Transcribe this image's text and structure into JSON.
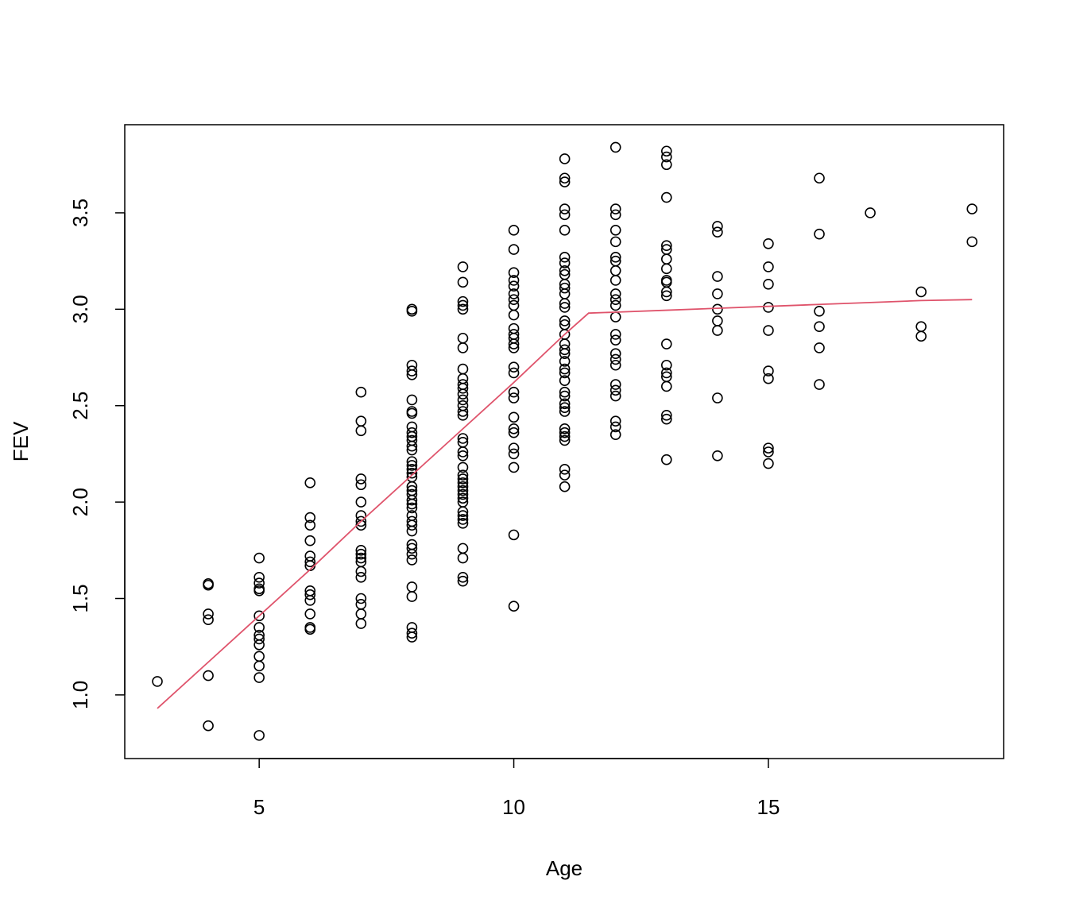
{
  "chart_data": {
    "type": "scatter",
    "xlabel": "Age",
    "ylabel": "FEV",
    "xlim": [
      2.36,
      19.62
    ],
    "ylim": [
      0.67,
      3.957
    ],
    "xticks": [
      5,
      10,
      15
    ],
    "yticks": [
      {
        "value": 1,
        "label": "1.0"
      },
      {
        "value": 1.5,
        "label": "1.5"
      },
      {
        "value": 2,
        "label": "2.0"
      },
      {
        "value": 2.5,
        "label": "2.5"
      },
      {
        "value": 3,
        "label": "3.0"
      },
      {
        "value": 3.5,
        "label": "3.5"
      }
    ],
    "series": [
      {
        "type": "scatter",
        "color": "#000000",
        "points": [
          [
            3,
            1.07
          ],
          [
            4,
            1.577
          ],
          [
            4,
            1.569
          ],
          [
            4,
            1.42
          ],
          [
            4,
            1.39
          ],
          [
            4,
            1.1
          ],
          [
            4,
            0.84
          ],
          [
            5,
            1.71
          ],
          [
            5,
            1.61
          ],
          [
            5,
            1.58
          ],
          [
            5,
            1.55
          ],
          [
            5,
            1.54
          ],
          [
            5,
            1.41
          ],
          [
            5,
            1.35
          ],
          [
            5,
            1.31
          ],
          [
            5,
            1.29
          ],
          [
            5,
            1.26
          ],
          [
            5,
            1.2
          ],
          [
            5,
            1.15
          ],
          [
            5,
            1.09
          ],
          [
            5,
            0.79
          ],
          [
            6,
            2.1
          ],
          [
            6,
            1.92
          ],
          [
            6,
            1.88
          ],
          [
            6,
            1.8
          ],
          [
            6,
            1.72
          ],
          [
            6,
            1.69
          ],
          [
            6,
            1.67
          ],
          [
            6,
            1.54
          ],
          [
            6,
            1.52
          ],
          [
            6,
            1.49
          ],
          [
            6,
            1.42
          ],
          [
            6,
            1.35
          ],
          [
            6,
            1.34
          ],
          [
            7,
            2.57
          ],
          [
            7,
            2.42
          ],
          [
            7,
            2.37
          ],
          [
            7,
            2.12
          ],
          [
            7,
            2.09
          ],
          [
            7,
            2.0
          ],
          [
            7,
            1.93
          ],
          [
            7,
            1.9
          ],
          [
            7,
            1.88
          ],
          [
            7,
            1.75
          ],
          [
            7,
            1.73
          ],
          [
            7,
            1.71
          ],
          [
            7,
            1.69
          ],
          [
            7,
            1.64
          ],
          [
            7,
            1.61
          ],
          [
            7,
            1.5
          ],
          [
            7,
            1.47
          ],
          [
            7,
            1.42
          ],
          [
            7,
            1.37
          ],
          [
            8,
            3.0
          ],
          [
            8,
            2.99
          ],
          [
            8,
            2.71
          ],
          [
            8,
            2.68
          ],
          [
            8,
            2.66
          ],
          [
            8,
            2.53
          ],
          [
            8,
            2.47
          ],
          [
            8,
            2.46
          ],
          [
            8,
            2.39
          ],
          [
            8,
            2.36
          ],
          [
            8,
            2.34
          ],
          [
            8,
            2.32
          ],
          [
            8,
            2.29
          ],
          [
            8,
            2.27
          ],
          [
            8,
            2.21
          ],
          [
            8,
            2.19
          ],
          [
            8,
            2.17
          ],
          [
            8,
            2.15
          ],
          [
            8,
            2.13
          ],
          [
            8,
            2.08
          ],
          [
            8,
            2.06
          ],
          [
            8,
            2.04
          ],
          [
            8,
            2.01
          ],
          [
            8,
            1.99
          ],
          [
            8,
            1.97
          ],
          [
            8,
            1.93
          ],
          [
            8,
            1.9
          ],
          [
            8,
            1.88
          ],
          [
            8,
            1.85
          ],
          [
            8,
            1.78
          ],
          [
            8,
            1.76
          ],
          [
            8,
            1.73
          ],
          [
            8,
            1.7
          ],
          [
            8,
            1.56
          ],
          [
            8,
            1.51
          ],
          [
            8,
            1.35
          ],
          [
            8,
            1.32
          ],
          [
            8,
            1.3
          ],
          [
            9,
            3.22
          ],
          [
            9,
            3.14
          ],
          [
            9,
            3.04
          ],
          [
            9,
            3.02
          ],
          [
            9,
            3.0
          ],
          [
            9,
            2.85
          ],
          [
            9,
            2.8
          ],
          [
            9,
            2.69
          ],
          [
            9,
            2.64
          ],
          [
            9,
            2.61
          ],
          [
            9,
            2.59
          ],
          [
            9,
            2.56
          ],
          [
            9,
            2.53
          ],
          [
            9,
            2.5
          ],
          [
            9,
            2.47
          ],
          [
            9,
            2.45
          ],
          [
            9,
            2.33
          ],
          [
            9,
            2.31
          ],
          [
            9,
            2.26
          ],
          [
            9,
            2.24
          ],
          [
            9,
            2.18
          ],
          [
            9,
            2.14
          ],
          [
            9,
            2.12
          ],
          [
            9,
            2.1
          ],
          [
            9,
            2.08
          ],
          [
            9,
            2.06
          ],
          [
            9,
            2.04
          ],
          [
            9,
            2.02
          ],
          [
            9,
            2.0
          ],
          [
            9,
            1.95
          ],
          [
            9,
            1.93
          ],
          [
            9,
            1.91
          ],
          [
            9,
            1.89
          ],
          [
            9,
            1.76
          ],
          [
            9,
            1.71
          ],
          [
            9,
            1.61
          ],
          [
            9,
            1.59
          ],
          [
            10,
            3.41
          ],
          [
            10,
            3.31
          ],
          [
            10,
            3.19
          ],
          [
            10,
            3.15
          ],
          [
            10,
            3.12
          ],
          [
            10,
            3.08
          ],
          [
            10,
            3.05
          ],
          [
            10,
            3.02
          ],
          [
            10,
            2.97
          ],
          [
            10,
            2.9
          ],
          [
            10,
            2.87
          ],
          [
            10,
            2.85
          ],
          [
            10,
            2.82
          ],
          [
            10,
            2.8
          ],
          [
            10,
            2.7
          ],
          [
            10,
            2.67
          ],
          [
            10,
            2.57
          ],
          [
            10,
            2.54
          ],
          [
            10,
            2.44
          ],
          [
            10,
            2.38
          ],
          [
            10,
            2.36
          ],
          [
            10,
            2.28
          ],
          [
            10,
            2.25
          ],
          [
            10,
            2.18
          ],
          [
            10,
            1.83
          ],
          [
            10,
            1.46
          ],
          [
            11,
            3.78
          ],
          [
            11,
            3.68
          ],
          [
            11,
            3.66
          ],
          [
            11,
            3.52
          ],
          [
            11,
            3.49
          ],
          [
            11,
            3.41
          ],
          [
            11,
            3.27
          ],
          [
            11,
            3.24
          ],
          [
            11,
            3.2
          ],
          [
            11,
            3.18
          ],
          [
            11,
            3.13
          ],
          [
            11,
            3.11
          ],
          [
            11,
            3.08
          ],
          [
            11,
            3.03
          ],
          [
            11,
            3.01
          ],
          [
            11,
            2.94
          ],
          [
            11,
            2.92
          ],
          [
            11,
            2.87
          ],
          [
            11,
            2.82
          ],
          [
            11,
            2.79
          ],
          [
            11,
            2.77
          ],
          [
            11,
            2.73
          ],
          [
            11,
            2.69
          ],
          [
            11,
            2.67
          ],
          [
            11,
            2.63
          ],
          [
            11,
            2.57
          ],
          [
            11,
            2.55
          ],
          [
            11,
            2.51
          ],
          [
            11,
            2.49
          ],
          [
            11,
            2.47
          ],
          [
            11,
            2.38
          ],
          [
            11,
            2.36
          ],
          [
            11,
            2.34
          ],
          [
            11,
            2.32
          ],
          [
            11,
            2.17
          ],
          [
            11,
            2.14
          ],
          [
            11,
            2.08
          ],
          [
            12,
            3.84
          ],
          [
            12,
            3.52
          ],
          [
            12,
            3.49
          ],
          [
            12,
            3.41
          ],
          [
            12,
            3.35
          ],
          [
            12,
            3.27
          ],
          [
            12,
            3.25
          ],
          [
            12,
            3.2
          ],
          [
            12,
            3.15
          ],
          [
            12,
            3.08
          ],
          [
            12,
            3.05
          ],
          [
            12,
            3.02
          ],
          [
            12,
            2.96
          ],
          [
            12,
            2.87
          ],
          [
            12,
            2.84
          ],
          [
            12,
            2.77
          ],
          [
            12,
            2.74
          ],
          [
            12,
            2.71
          ],
          [
            12,
            2.61
          ],
          [
            12,
            2.58
          ],
          [
            12,
            2.55
          ],
          [
            12,
            2.42
          ],
          [
            12,
            2.39
          ],
          [
            12,
            2.35
          ],
          [
            13,
            3.82
          ],
          [
            13,
            3.79
          ],
          [
            13,
            3.75
          ],
          [
            13,
            3.58
          ],
          [
            13,
            3.33
          ],
          [
            13,
            3.31
          ],
          [
            13,
            3.26
          ],
          [
            13,
            3.21
          ],
          [
            13,
            3.15
          ],
          [
            13,
            3.14
          ],
          [
            13,
            3.09
          ],
          [
            13,
            3.07
          ],
          [
            13,
            2.82
          ],
          [
            13,
            2.71
          ],
          [
            13,
            2.67
          ],
          [
            13,
            2.65
          ],
          [
            13,
            2.6
          ],
          [
            13,
            2.45
          ],
          [
            13,
            2.43
          ],
          [
            13,
            2.22
          ],
          [
            14,
            3.43
          ],
          [
            14,
            3.4
          ],
          [
            14,
            3.17
          ],
          [
            14,
            3.08
          ],
          [
            14,
            3.0
          ],
          [
            14,
            2.94
          ],
          [
            14,
            2.89
          ],
          [
            14,
            2.54
          ],
          [
            14,
            2.24
          ],
          [
            15,
            3.34
          ],
          [
            15,
            3.22
          ],
          [
            15,
            3.13
          ],
          [
            15,
            3.01
          ],
          [
            15,
            2.89
          ],
          [
            15,
            2.68
          ],
          [
            15,
            2.64
          ],
          [
            15,
            2.28
          ],
          [
            15,
            2.26
          ],
          [
            15,
            2.2
          ],
          [
            16,
            3.68
          ],
          [
            16,
            3.39
          ],
          [
            16,
            2.99
          ],
          [
            16,
            2.91
          ],
          [
            16,
            2.8
          ],
          [
            16,
            2.61
          ],
          [
            17,
            3.5
          ],
          [
            18,
            3.09
          ],
          [
            18,
            2.91
          ],
          [
            18,
            2.86
          ],
          [
            19,
            3.52
          ],
          [
            19,
            3.35
          ]
        ]
      },
      {
        "type": "line",
        "color": "#df536b",
        "points": [
          [
            3,
            0.93
          ],
          [
            4,
            1.17
          ],
          [
            5,
            1.41
          ],
          [
            6,
            1.65
          ],
          [
            7,
            1.9
          ],
          [
            8,
            2.14
          ],
          [
            9,
            2.38
          ],
          [
            10,
            2.62
          ],
          [
            11,
            2.87
          ],
          [
            11.47,
            2.98
          ],
          [
            12,
            2.985
          ],
          [
            13,
            2.995
          ],
          [
            14,
            3.005
          ],
          [
            15,
            3.015
          ],
          [
            16,
            3.025
          ],
          [
            17,
            3.035
          ],
          [
            18,
            3.045
          ],
          [
            19,
            3.05
          ]
        ]
      }
    ]
  }
}
